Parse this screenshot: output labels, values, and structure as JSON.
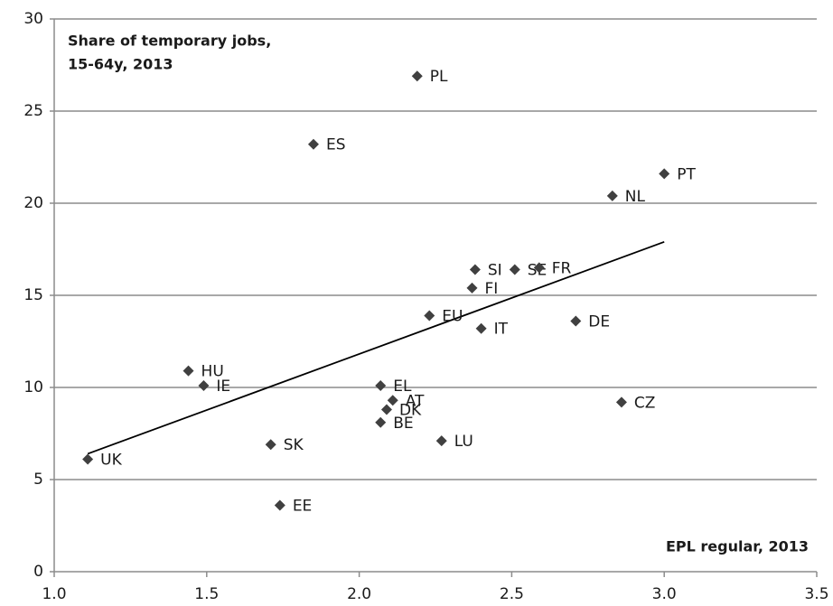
{
  "chart_data": {
    "type": "scatter",
    "title": [
      "Share of temporary jobs,",
      "15-64y, 2013"
    ],
    "x_label": "EPL regular, 2013",
    "labels": [
      "PL",
      "ES",
      "PT",
      "NL",
      "SI",
      "SE",
      "FR",
      "FI",
      "EU",
      "IT",
      "DE",
      "HU",
      "IE",
      "EL",
      "AT",
      "DK",
      "BE",
      "CZ",
      "SK",
      "LU",
      "UK",
      "EE"
    ],
    "x": [
      2.19,
      1.85,
      3.0,
      2.83,
      2.38,
      2.51,
      2.59,
      2.37,
      2.23,
      2.4,
      2.71,
      1.44,
      1.49,
      2.07,
      2.11,
      2.09,
      2.07,
      2.86,
      1.71,
      2.27,
      1.11,
      1.74
    ],
    "values": [
      26.9,
      23.2,
      21.6,
      20.4,
      16.4,
      16.4,
      16.5,
      15.4,
      13.9,
      13.2,
      13.6,
      10.9,
      10.1,
      10.1,
      9.3,
      8.8,
      8.1,
      9.2,
      6.9,
      7.1,
      6.1,
      3.6
    ],
    "color": "#404040",
    "trendline": {
      "x": [
        1.11,
        3.0
      ],
      "y": [
        6.4,
        17.9
      ],
      "color": "#000000"
    },
    "xlim": [
      1.0,
      3.5
    ],
    "ylim": [
      0,
      30
    ],
    "xticks": [
      {
        "value": 1,
        "label": "1.0"
      },
      1.5,
      {
        "value": 2,
        "label": "2.0"
      },
      2.5,
      {
        "value": 3,
        "label": "3.0"
      },
      3.5
    ],
    "yticks": [
      0,
      5,
      10,
      15,
      20,
      25,
      30
    ],
    "grid": true
  }
}
